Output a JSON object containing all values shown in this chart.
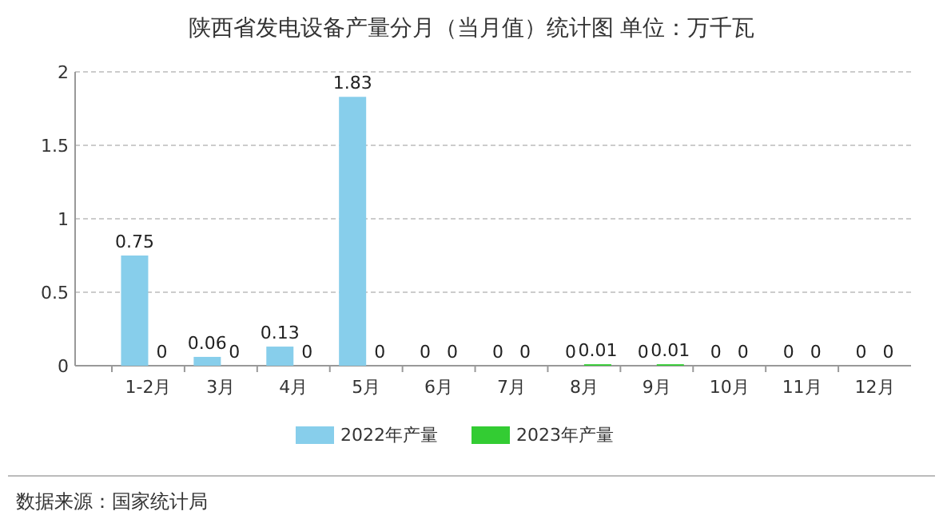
{
  "chart_data": {
    "type": "bar",
    "title": "陕西省发电设备产量分月（当月值）统计图 单位：万千瓦",
    "categories": [
      "1-2月",
      "3月",
      "4月",
      "5月",
      "6月",
      "7月",
      "8月",
      "9月",
      "10月",
      "11月",
      "12月"
    ],
    "series": [
      {
        "name": "2022年产量",
        "color": "#87ceeb",
        "values": [
          0.75,
          0.06,
          0.13,
          1.83,
          0,
          0,
          0,
          0,
          0,
          0,
          0
        ]
      },
      {
        "name": "2023年产量",
        "color": "#33cc33",
        "values": [
          0,
          0,
          0,
          0,
          0,
          0,
          0.01,
          0.01,
          0,
          0,
          0
        ]
      }
    ],
    "ylim": [
      0,
      2
    ],
    "yticks": [
      0,
      0.5,
      1,
      1.5,
      2
    ],
    "grid": "y",
    "legend": "bottom",
    "data_labels": true,
    "annotations": [
      "数据来源：国家统计局"
    ]
  }
}
